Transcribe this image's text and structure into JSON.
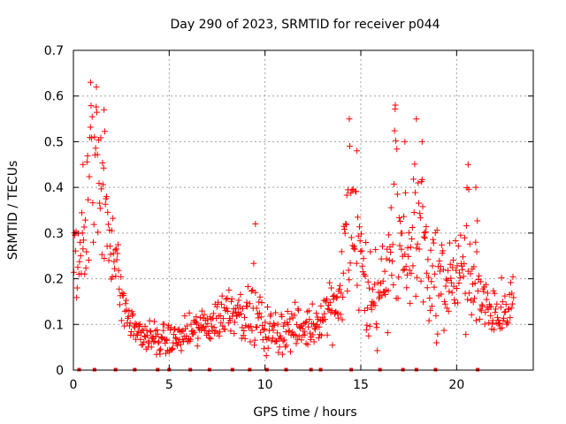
{
  "chart_data": {
    "type": "scatter",
    "title": "Day 290 of 2023, SRMTID for receiver p044",
    "xlabel": "GPS time / hours",
    "ylabel": "SRMTID / TECUs",
    "xlim": [
      0,
      24
    ],
    "ylim": [
      0,
      0.7
    ],
    "xticks": [
      0,
      5,
      10,
      15,
      20
    ],
    "xtick_labels": [
      "0",
      "5",
      "10",
      "15",
      "20"
    ],
    "yticks": [
      0,
      0.1,
      0.2,
      0.3,
      0.4,
      0.5,
      0.6,
      0.7
    ],
    "ytick_labels": [
      "0",
      "0.1",
      "0.2",
      "0.3",
      "0.4",
      "0.5",
      "0.6",
      "0.7"
    ],
    "grid": true,
    "marker": "+",
    "color": "#ff0000",
    "series": [
      {
        "name": "SRMTID",
        "trend": [
          {
            "x": 0.0,
            "y": 0.25
          },
          {
            "x": 0.5,
            "y": 0.28
          },
          {
            "x": 1.0,
            "y": 0.34
          },
          {
            "x": 1.5,
            "y": 0.38
          },
          {
            "x": 2.0,
            "y": 0.3
          },
          {
            "x": 2.5,
            "y": 0.16
          },
          {
            "x": 3.0,
            "y": 0.1
          },
          {
            "x": 3.5,
            "y": 0.08
          },
          {
            "x": 4.0,
            "y": 0.07
          },
          {
            "x": 4.5,
            "y": 0.065
          },
          {
            "x": 5.0,
            "y": 0.065
          },
          {
            "x": 5.5,
            "y": 0.07
          },
          {
            "x": 6.0,
            "y": 0.08
          },
          {
            "x": 6.5,
            "y": 0.09
          },
          {
            "x": 7.0,
            "y": 0.1
          },
          {
            "x": 7.5,
            "y": 0.11
          },
          {
            "x": 8.0,
            "y": 0.13
          },
          {
            "x": 8.5,
            "y": 0.14
          },
          {
            "x": 9.0,
            "y": 0.12
          },
          {
            "x": 9.5,
            "y": 0.11
          },
          {
            "x": 10.0,
            "y": 0.09
          },
          {
            "x": 10.5,
            "y": 0.08
          },
          {
            "x": 11.0,
            "y": 0.09
          },
          {
            "x": 11.5,
            "y": 0.09
          },
          {
            "x": 12.0,
            "y": 0.09
          },
          {
            "x": 12.5,
            "y": 0.1
          },
          {
            "x": 13.0,
            "y": 0.12
          },
          {
            "x": 13.5,
            "y": 0.15
          },
          {
            "x": 14.0,
            "y": 0.17
          },
          {
            "x": 14.5,
            "y": 0.26
          },
          {
            "x": 15.0,
            "y": 0.2
          },
          {
            "x": 15.5,
            "y": 0.15
          },
          {
            "x": 16.0,
            "y": 0.17
          },
          {
            "x": 16.5,
            "y": 0.2
          },
          {
            "x": 17.0,
            "y": 0.23
          },
          {
            "x": 17.5,
            "y": 0.24
          },
          {
            "x": 18.0,
            "y": 0.25
          },
          {
            "x": 18.5,
            "y": 0.22
          },
          {
            "x": 19.0,
            "y": 0.2
          },
          {
            "x": 19.5,
            "y": 0.19
          },
          {
            "x": 20.0,
            "y": 0.21
          },
          {
            "x": 20.5,
            "y": 0.2
          },
          {
            "x": 21.0,
            "y": 0.17
          },
          {
            "x": 21.5,
            "y": 0.15
          },
          {
            "x": 22.0,
            "y": 0.13
          },
          {
            "x": 22.5,
            "y": 0.14
          },
          {
            "x": 23.0,
            "y": 0.16
          }
        ],
        "spread": [
          {
            "x": 0.0,
            "s": 0.06
          },
          {
            "x": 1.5,
            "s": 0.12
          },
          {
            "x": 2.5,
            "s": 0.04
          },
          {
            "x": 3.0,
            "s": 0.025
          },
          {
            "x": 6.0,
            "s": 0.025
          },
          {
            "x": 8.0,
            "s": 0.04
          },
          {
            "x": 11.0,
            "s": 0.035
          },
          {
            "x": 13.0,
            "s": 0.03
          },
          {
            "x": 14.5,
            "s": 0.1
          },
          {
            "x": 16.0,
            "s": 0.08
          },
          {
            "x": 18.0,
            "s": 0.09
          },
          {
            "x": 20.0,
            "s": 0.07
          },
          {
            "x": 22.0,
            "s": 0.05
          },
          {
            "x": 23.0,
            "s": 0.04
          }
        ],
        "peaks": [
          {
            "x": 0.9,
            "y": 0.63
          },
          {
            "x": 1.2,
            "y": 0.62
          },
          {
            "x": 1.6,
            "y": 0.57
          },
          {
            "x": 0.5,
            "y": 0.45
          },
          {
            "x": 9.5,
            "y": 0.32
          },
          {
            "x": 14.4,
            "y": 0.55
          },
          {
            "x": 14.8,
            "y": 0.48
          },
          {
            "x": 16.8,
            "y": 0.58
          },
          {
            "x": 17.3,
            "y": 0.5
          },
          {
            "x": 17.9,
            "y": 0.55
          },
          {
            "x": 18.2,
            "y": 0.5
          },
          {
            "x": 20.6,
            "y": 0.45
          },
          {
            "x": 21.0,
            "y": 0.4
          }
        ]
      },
      {
        "name": "zero-markers",
        "x": [
          0.3,
          1.1,
          2.2,
          3.2,
          4.4,
          5.0,
          6.1,
          7.1,
          8.3,
          9.2,
          10.1,
          11.1,
          12.4,
          12.9,
          14.5,
          16.0,
          17.2,
          17.9,
          18.9,
          21.1
        ]
      }
    ]
  }
}
